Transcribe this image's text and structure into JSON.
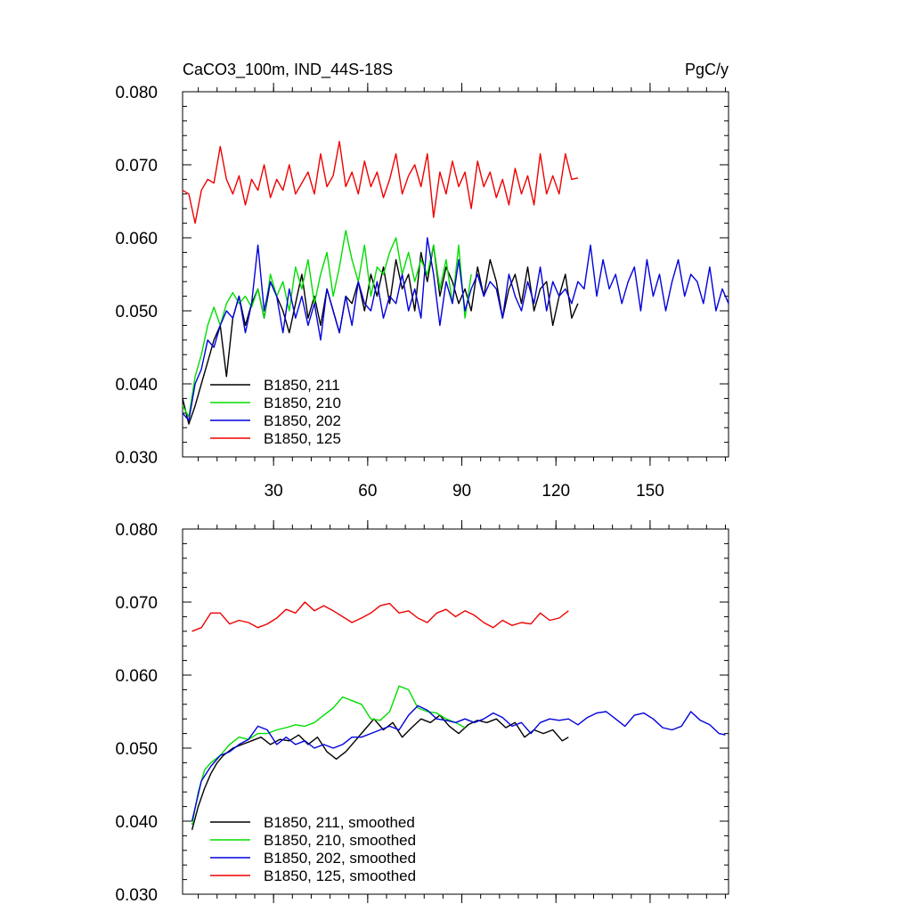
{
  "header": {
    "title_left": "CaCO3_100m, IND_44S-18S",
    "title_right": "PgC/y"
  },
  "chart_data": [
    {
      "type": "line",
      "title": "CaCO3_100m, IND_44S-18S",
      "units": "PgC/y",
      "xlim": [
        1,
        175
      ],
      "ylim": [
        0.03,
        0.08
      ],
      "x_ticks": [
        30,
        60,
        90,
        120,
        150
      ],
      "x_tick_labels": [
        "30",
        "60",
        "90",
        "120",
        "150"
      ],
      "y_ticks": [
        0.03,
        0.04,
        0.05,
        0.06,
        0.07,
        0.08
      ],
      "y_tick_labels": [
        "0.030",
        "0.040",
        "0.050",
        "0.060",
        "0.070",
        "0.080"
      ],
      "legend_position": "bottom-left",
      "grid": false,
      "series": [
        {
          "name": "B1850, 211",
          "color": "#000000",
          "x": [
            1,
            3,
            5,
            7,
            9,
            11,
            13,
            15,
            17,
            19,
            21,
            23,
            25,
            27,
            29,
            31,
            33,
            35,
            37,
            39,
            41,
            43,
            45,
            47,
            49,
            51,
            53,
            55,
            57,
            59,
            61,
            63,
            65,
            67,
            69,
            71,
            73,
            75,
            77,
            79,
            81,
            83,
            85,
            87,
            89,
            91,
            93,
            95,
            97,
            99,
            101,
            103,
            105,
            107,
            109,
            111,
            113,
            115,
            117,
            119,
            121,
            123,
            125,
            127
          ],
          "y": [
            0.038,
            0.0345,
            0.037,
            0.04,
            0.043,
            0.046,
            0.048,
            0.041,
            0.049,
            0.052,
            0.048,
            0.051,
            0.053,
            0.049,
            0.054,
            0.052,
            0.05,
            0.047,
            0.051,
            0.055,
            0.049,
            0.052,
            0.048,
            0.053,
            0.05,
            0.047,
            0.052,
            0.051,
            0.054,
            0.05,
            0.055,
            0.052,
            0.056,
            0.051,
            0.057,
            0.053,
            0.055,
            0.05,
            0.058,
            0.054,
            0.059,
            0.052,
            0.056,
            0.054,
            0.051,
            0.053,
            0.05,
            0.056,
            0.052,
            0.057,
            0.054,
            0.049,
            0.053,
            0.055,
            0.051,
            0.056,
            0.05,
            0.053,
            0.054,
            0.048,
            0.052,
            0.055,
            0.049,
            0.051
          ]
        },
        {
          "name": "B1850, 210",
          "color": "#00dd00",
          "x": [
            1,
            3,
            5,
            7,
            9,
            11,
            13,
            15,
            17,
            19,
            21,
            23,
            25,
            27,
            29,
            31,
            33,
            35,
            37,
            39,
            41,
            43,
            45,
            47,
            49,
            51,
            53,
            55,
            57,
            59,
            61,
            63,
            65,
            67,
            69,
            71,
            73,
            75,
            77,
            79,
            81,
            83,
            85,
            87,
            89,
            91,
            93
          ],
          "y": [
            0.037,
            0.0355,
            0.041,
            0.044,
            0.048,
            0.0505,
            0.048,
            0.051,
            0.0525,
            0.051,
            0.052,
            0.0505,
            0.053,
            0.049,
            0.055,
            0.052,
            0.054,
            0.05,
            0.056,
            0.053,
            0.057,
            0.051,
            0.055,
            0.058,
            0.052,
            0.056,
            0.061,
            0.057,
            0.054,
            0.059,
            0.052,
            0.056,
            0.055,
            0.058,
            0.06,
            0.055,
            0.058,
            0.054,
            0.057,
            0.055,
            0.059,
            0.053,
            0.057,
            0.051,
            0.059,
            0.049,
            0.055
          ]
        },
        {
          "name": "B1850, 202",
          "color": "#0000dd",
          "x": [
            1,
            3,
            5,
            7,
            9,
            11,
            13,
            15,
            17,
            19,
            21,
            23,
            25,
            27,
            29,
            31,
            33,
            35,
            37,
            39,
            41,
            43,
            45,
            47,
            49,
            51,
            53,
            55,
            57,
            59,
            61,
            63,
            65,
            67,
            69,
            71,
            73,
            75,
            77,
            79,
            81,
            83,
            85,
            87,
            89,
            91,
            93,
            95,
            97,
            99,
            101,
            103,
            105,
            107,
            109,
            111,
            113,
            115,
            117,
            119,
            121,
            123,
            125,
            127,
            129,
            131,
            133,
            135,
            137,
            139,
            141,
            143,
            145,
            147,
            149,
            151,
            153,
            155,
            157,
            159,
            161,
            163,
            165,
            167,
            169,
            171,
            173,
            175
          ],
          "y": [
            0.036,
            0.035,
            0.04,
            0.042,
            0.046,
            0.045,
            0.048,
            0.05,
            0.049,
            0.052,
            0.047,
            0.051,
            0.059,
            0.05,
            0.054,
            0.052,
            0.047,
            0.053,
            0.049,
            0.052,
            0.048,
            0.051,
            0.046,
            0.053,
            0.05,
            0.047,
            0.052,
            0.048,
            0.054,
            0.051,
            0.05,
            0.054,
            0.049,
            0.052,
            0.051,
            0.055,
            0.05,
            0.053,
            0.049,
            0.06,
            0.055,
            0.048,
            0.054,
            0.051,
            0.057,
            0.05,
            0.053,
            0.055,
            0.052,
            0.054,
            0.053,
            0.049,
            0.055,
            0.052,
            0.05,
            0.054,
            0.051,
            0.056,
            0.05,
            0.054,
            0.052,
            0.053,
            0.051,
            0.054,
            0.053,
            0.059,
            0.052,
            0.057,
            0.053,
            0.055,
            0.051,
            0.054,
            0.056,
            0.05,
            0.057,
            0.052,
            0.055,
            0.05,
            0.054,
            0.057,
            0.052,
            0.055,
            0.054,
            0.051,
            0.056,
            0.05,
            0.053,
            0.051
          ]
        },
        {
          "name": "B1850, 125",
          "color": "#ee0000",
          "x": [
            1,
            3,
            5,
            7,
            9,
            11,
            13,
            15,
            17,
            19,
            21,
            23,
            25,
            27,
            29,
            31,
            33,
            35,
            37,
            39,
            41,
            43,
            45,
            47,
            49,
            51,
            53,
            55,
            57,
            59,
            61,
            63,
            65,
            67,
            69,
            71,
            73,
            75,
            77,
            79,
            81,
            83,
            85,
            87,
            89,
            91,
            93,
            95,
            97,
            99,
            101,
            103,
            105,
            107,
            109,
            111,
            113,
            115,
            117,
            119,
            121,
            123,
            125,
            127
          ],
          "y": [
            0.0665,
            0.066,
            0.062,
            0.0665,
            0.068,
            0.0675,
            0.0725,
            0.068,
            0.066,
            0.0685,
            0.0645,
            0.068,
            0.0665,
            0.07,
            0.0655,
            0.068,
            0.0665,
            0.07,
            0.066,
            0.0675,
            0.069,
            0.066,
            0.0715,
            0.067,
            0.0685,
            0.0732,
            0.067,
            0.069,
            0.066,
            0.0705,
            0.067,
            0.069,
            0.0655,
            0.068,
            0.0715,
            0.066,
            0.0685,
            0.07,
            0.067,
            0.0715,
            0.0628,
            0.069,
            0.066,
            0.0705,
            0.067,
            0.069,
            0.064,
            0.0705,
            0.067,
            0.069,
            0.0655,
            0.068,
            0.0645,
            0.0695,
            0.066,
            0.0685,
            0.0645,
            0.0715,
            0.066,
            0.0685,
            0.066,
            0.0715,
            0.068,
            0.0682
          ]
        }
      ]
    },
    {
      "type": "line",
      "xlim": [
        1,
        175
      ],
      "ylim": [
        0.03,
        0.08
      ],
      "x_ticks": [
        30,
        60,
        90,
        120,
        150
      ],
      "y_ticks": [
        0.03,
        0.04,
        0.05,
        0.06,
        0.07,
        0.08
      ],
      "y_tick_labels": [
        "0.030",
        "0.040",
        "0.050",
        "0.060",
        "0.070",
        "0.080"
      ],
      "legend_position": "bottom-left",
      "grid": false,
      "series": [
        {
          "name": "B1850, 211, smoothed",
          "color": "#000000",
          "x": [
            4,
            6,
            8,
            10,
            12,
            14,
            17,
            20,
            23,
            26,
            29,
            32,
            35,
            38,
            41,
            44,
            47,
            50,
            53,
            56,
            59,
            62,
            65,
            68,
            71,
            74,
            77,
            80,
            83,
            86,
            89,
            92,
            95,
            98,
            101,
            104,
            107,
            110,
            113,
            116,
            119,
            122,
            124
          ],
          "y": [
            0.0388,
            0.042,
            0.0445,
            0.0465,
            0.048,
            0.049,
            0.05,
            0.0505,
            0.051,
            0.0515,
            0.0505,
            0.0512,
            0.051,
            0.0518,
            0.0505,
            0.0515,
            0.0495,
            0.0485,
            0.0495,
            0.051,
            0.0525,
            0.054,
            0.0525,
            0.0535,
            0.0515,
            0.0528,
            0.054,
            0.0535,
            0.0545,
            0.053,
            0.052,
            0.0532,
            0.0538,
            0.0535,
            0.054,
            0.0528,
            0.0535,
            0.0515,
            0.0525,
            0.052,
            0.0525,
            0.051,
            0.0515
          ]
        },
        {
          "name": "B1850, 210, smoothed",
          "color": "#00dd00",
          "x": [
            4,
            6,
            8,
            10,
            13,
            16,
            19,
            22,
            25,
            28,
            31,
            34,
            37,
            40,
            43,
            46,
            49,
            52,
            55,
            58,
            61,
            64,
            67,
            70,
            73,
            76,
            79,
            82,
            85,
            88,
            91
          ],
          "y": [
            0.0395,
            0.044,
            0.047,
            0.048,
            0.049,
            0.0505,
            0.0515,
            0.0512,
            0.052,
            0.052,
            0.0525,
            0.0528,
            0.0532,
            0.053,
            0.0535,
            0.0545,
            0.0555,
            0.057,
            0.0565,
            0.056,
            0.054,
            0.0538,
            0.055,
            0.0585,
            0.058,
            0.0555,
            0.055,
            0.0548,
            0.054,
            0.0535,
            0.0528
          ]
        },
        {
          "name": "B1850, 202, smoothed",
          "color": "#0000dd",
          "x": [
            4,
            7,
            10,
            13,
            16,
            19,
            22,
            25,
            28,
            31,
            34,
            37,
            40,
            43,
            46,
            49,
            52,
            55,
            58,
            61,
            64,
            67,
            70,
            73,
            76,
            79,
            82,
            85,
            88,
            91,
            94,
            97,
            100,
            103,
            106,
            109,
            112,
            115,
            118,
            121,
            124,
            127,
            130,
            133,
            136,
            139,
            142,
            145,
            148,
            151,
            154,
            157,
            160,
            163,
            166,
            169,
            172,
            174
          ],
          "y": [
            0.04,
            0.0455,
            0.0475,
            0.049,
            0.0495,
            0.0505,
            0.0512,
            0.053,
            0.0525,
            0.0505,
            0.0515,
            0.0505,
            0.051,
            0.05,
            0.0505,
            0.05,
            0.0505,
            0.0515,
            0.0515,
            0.052,
            0.0525,
            0.053,
            0.0525,
            0.0545,
            0.0558,
            0.0552,
            0.054,
            0.0538,
            0.0535,
            0.054,
            0.0535,
            0.054,
            0.0548,
            0.0542,
            0.053,
            0.0535,
            0.052,
            0.0535,
            0.054,
            0.0538,
            0.054,
            0.0532,
            0.0542,
            0.0548,
            0.055,
            0.054,
            0.053,
            0.0545,
            0.0548,
            0.054,
            0.0528,
            0.0525,
            0.053,
            0.055,
            0.0538,
            0.0532,
            0.052,
            0.0518
          ]
        },
        {
          "name": "B1850, 125, smoothed",
          "color": "#ee0000",
          "x": [
            4,
            7,
            10,
            13,
            16,
            19,
            22,
            25,
            28,
            31,
            34,
            37,
            40,
            43,
            46,
            49,
            52,
            55,
            58,
            61,
            64,
            67,
            70,
            73,
            76,
            79,
            82,
            85,
            88,
            91,
            94,
            97,
            100,
            103,
            106,
            109,
            112,
            115,
            118,
            121,
            124
          ],
          "y": [
            0.066,
            0.0665,
            0.0685,
            0.0685,
            0.067,
            0.0675,
            0.0672,
            0.0665,
            0.067,
            0.0678,
            0.069,
            0.0685,
            0.07,
            0.0688,
            0.0695,
            0.0688,
            0.068,
            0.0672,
            0.0678,
            0.0685,
            0.0695,
            0.0698,
            0.0685,
            0.0688,
            0.0678,
            0.0672,
            0.0685,
            0.069,
            0.068,
            0.0688,
            0.0682,
            0.0672,
            0.0665,
            0.0675,
            0.0668,
            0.0672,
            0.067,
            0.0685,
            0.0675,
            0.0678,
            0.0688
          ]
        }
      ]
    }
  ]
}
